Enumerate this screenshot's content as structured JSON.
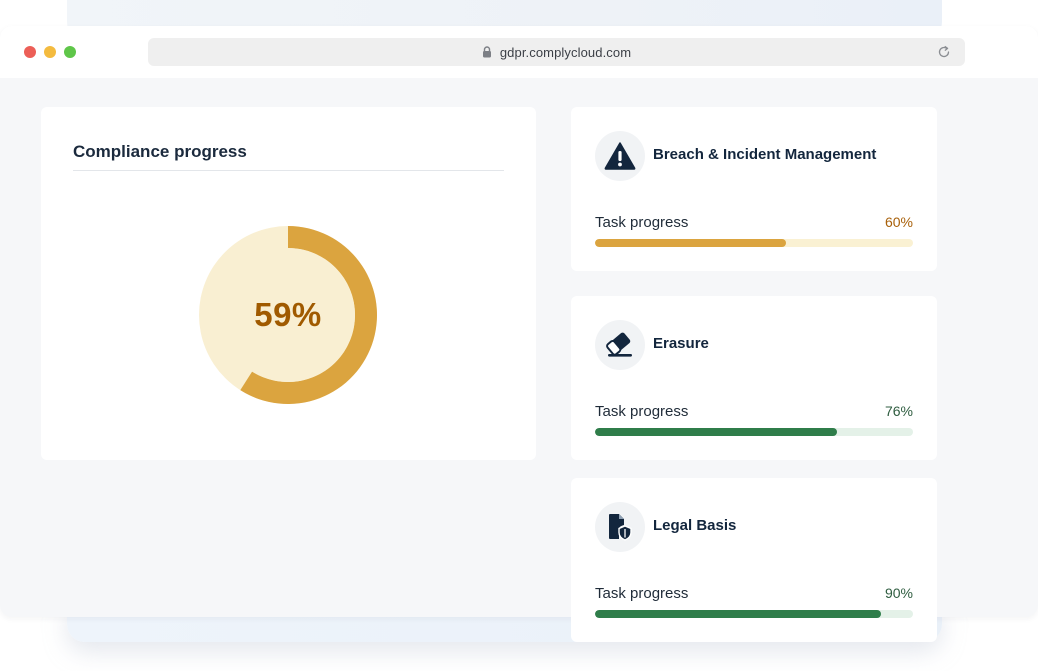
{
  "browser": {
    "url": "gdpr.complycloud.com",
    "controls": [
      {
        "name": "close",
        "color": "#ec5f57"
      },
      {
        "name": "minimize",
        "color": "#f4bb3f"
      },
      {
        "name": "maximize",
        "color": "#5fc649"
      }
    ],
    "lock_icon": "lock-icon",
    "reload_icon": "reload-icon"
  },
  "compliance": {
    "title": "Compliance progress",
    "percent_label": "59%",
    "percent_value": 59,
    "ring_color": "#dba43f",
    "track_color": "#f9efd2",
    "label_color": "#a05a00"
  },
  "modules": [
    {
      "title": "Breach & Incident Management",
      "icon": "warning-icon",
      "progress_label": "Task progress",
      "progress_text": "60%",
      "progress_value": 60,
      "fill_color": "#dba43f",
      "track_color": "#faf1d3",
      "value_color": "#a8600a"
    },
    {
      "title": "Erasure",
      "icon": "eraser-icon",
      "progress_label": "Task progress",
      "progress_text": "76%",
      "progress_value": 76,
      "fill_color": "#2f7d4a",
      "track_color": "#e4f1e8",
      "value_color": "#2f5d40"
    },
    {
      "title": "Legal Basis",
      "icon": "document-shield-icon",
      "progress_label": "Task progress",
      "progress_text": "90%",
      "progress_value": 90,
      "fill_color": "#2f7d4a",
      "track_color": "#e4f1e8",
      "value_color": "#2f5d40"
    }
  ]
}
